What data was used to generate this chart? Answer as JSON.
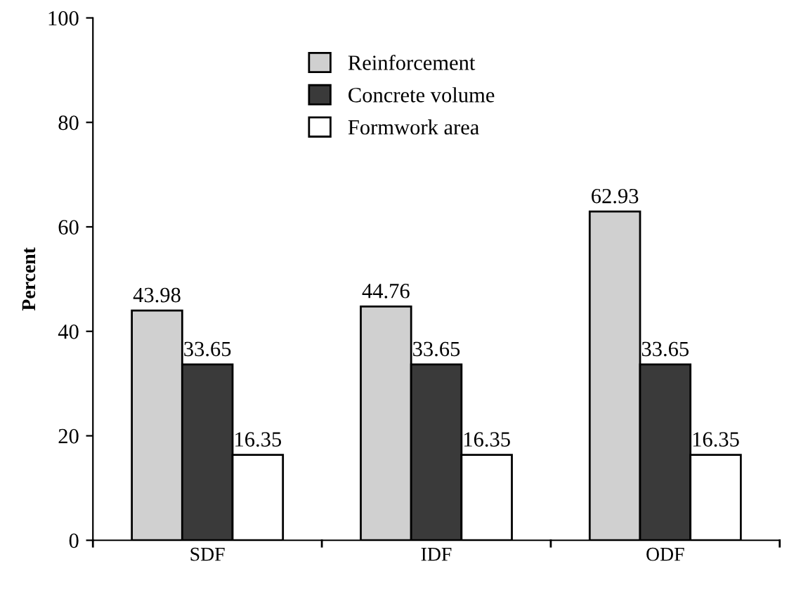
{
  "chart_data": {
    "type": "bar",
    "ylabel": "Percent",
    "categories": [
      "SDF",
      "IDF",
      "ODF"
    ],
    "series": [
      {
        "name": "Reinforcement",
        "color": "#d0d0d0",
        "values": [
          43.98,
          44.76,
          62.93
        ]
      },
      {
        "name": "Concrete volume",
        "color": "#3a3a3a",
        "values": [
          33.65,
          33.65,
          33.65
        ]
      },
      {
        "name": "Formwork area",
        "color": "#ffffff",
        "values": [
          16.35,
          16.35,
          16.35
        ]
      }
    ],
    "ylim": [
      0,
      100
    ],
    "yticks": [
      0,
      20,
      40,
      60,
      80,
      100
    ],
    "data_labels": true,
    "legend": "top",
    "grid": false
  }
}
